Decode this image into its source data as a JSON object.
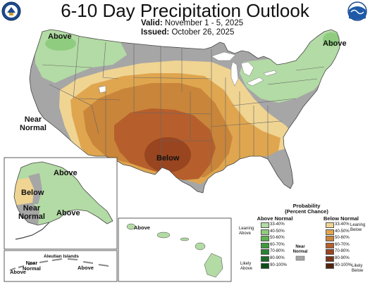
{
  "header": {
    "title": "6-10 Day Precipitation Outlook",
    "valid_label": "Valid:",
    "valid_value": "November 1 - 5, 2025",
    "issued_label": "Issued:",
    "issued_value": "October 26, 2025"
  },
  "logos": {
    "left": "noaa-department-of-commerce-seal",
    "right": "noaa-logo"
  },
  "map_labels": {
    "conus_above_west": "Above",
    "conus_above_east": "Above",
    "conus_near_normal": "Near\nNormal",
    "conus_below": "Below",
    "alaska_above_north": "Above",
    "alaska_below": "Below",
    "alaska_near_normal": "Near\nNormal",
    "alaska_above_south": "Above",
    "aleutians_title": "Aleutian Islands",
    "aleutians_near_normal": "Near\nNormal",
    "aleutians_above": "Above",
    "aleutians_above_far": "Above",
    "hawaii_above": "Above"
  },
  "legend": {
    "title": "Probability",
    "subtitle": "(Percent Chance)",
    "above_header": "Above Normal",
    "below_header": "Below Normal",
    "near_label": "Near\nNormal",
    "leaning_above": "Leaning\nAbove",
    "likely_above": "Likely\nAbove",
    "leaning_below": "Leaning\nBelow",
    "likely_below": "Likely\nBelow",
    "ranges": [
      "33-40%",
      "40-50%",
      "50-60%",
      "60-70%",
      "70-80%",
      "80-90%",
      "90-100%"
    ],
    "above_colors": [
      "#b3dba5",
      "#8fcc7f",
      "#5fb14f",
      "#3e9a3a",
      "#2a8232",
      "#1b6a28",
      "#0d4d18"
    ],
    "below_colors": [
      "#f0d492",
      "#dfa64f",
      "#c9853a",
      "#b65f2c",
      "#984520",
      "#7a3518",
      "#52230f"
    ],
    "near_color": "#a6a6a6"
  },
  "map_colors": {
    "near_normal": "#a6a6a6",
    "above_33_40": "#b3dba5",
    "below_33_40": "#f0d492",
    "below_40_50": "#dfa64f",
    "below_50_60": "#c9853a",
    "below_60_70": "#b65f2c",
    "below_70_80": "#984520",
    "water": "#ffffff",
    "border": "#555555"
  }
}
